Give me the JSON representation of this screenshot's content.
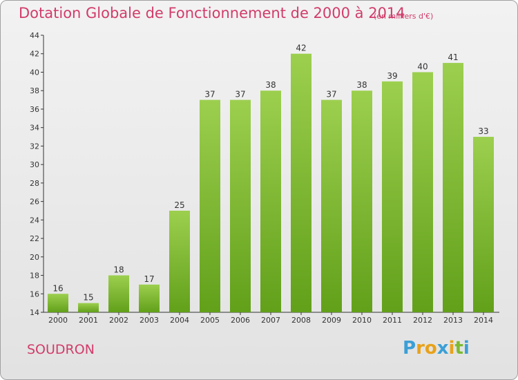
{
  "title": "Dotation Globale de Fonctionnement de 2000 à 2014",
  "subtitle": "(en milliers d'€)",
  "commune": "SOUDRON",
  "logo": {
    "letters": [
      "P",
      "r",
      "o",
      "x",
      "i",
      "t",
      "i"
    ],
    "colors": [
      "#3b9fd6",
      "#e8a21a",
      "#e8a21a",
      "#3b9fd6",
      "#e8a21a",
      "#7dba2f",
      "#3b9fd6"
    ]
  },
  "colors": {
    "bar_top": "#9ccf4e",
    "bar_bottom": "#62a01a",
    "title": "#d13c6a"
  },
  "chart_data": {
    "type": "bar",
    "title": "Dotation Globale de Fonctionnement de 2000 à 2014",
    "subtitle": "(en milliers d'€)",
    "xlabel": "",
    "ylabel": "",
    "ylim": [
      14,
      44
    ],
    "yticks": [
      14,
      16,
      18,
      20,
      22,
      24,
      26,
      28,
      30,
      32,
      34,
      36,
      38,
      40,
      42,
      44
    ],
    "grid": false,
    "categories": [
      "2000",
      "2001",
      "2002",
      "2003",
      "2004",
      "2005",
      "2006",
      "2007",
      "2008",
      "2009",
      "2010",
      "2011",
      "2012",
      "2013",
      "2014"
    ],
    "values": [
      16,
      15,
      18,
      17,
      25,
      37,
      37,
      38,
      42,
      37,
      38,
      39,
      40,
      41,
      33
    ]
  }
}
